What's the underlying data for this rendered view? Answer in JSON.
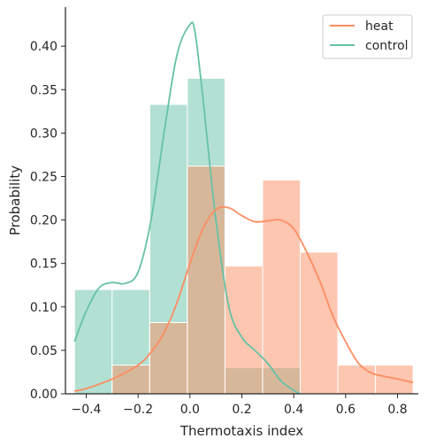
{
  "chart_data": {
    "type": "histogram",
    "xlabel": "Thermotaxis index",
    "ylabel": "Probability",
    "xlim": [
      -0.48,
      0.88
    ],
    "ylim": [
      0,
      0.445
    ],
    "xticks": [
      -0.4,
      -0.2,
      0.0,
      0.2,
      0.4,
      0.6,
      0.8
    ],
    "xtick_labels": [
      "−0.4",
      "−0.2",
      "0.0",
      "0.2",
      "0.4",
      "0.6",
      "0.8"
    ],
    "yticks": [
      0.0,
      0.05,
      0.1,
      0.15,
      0.2,
      0.25,
      0.3,
      0.35,
      0.4
    ],
    "ytick_labels": [
      "0.00",
      "0.05",
      "0.10",
      "0.15",
      "0.20",
      "0.25",
      "0.30",
      "0.35",
      "0.40"
    ],
    "legend": {
      "position": "top-right"
    },
    "series": [
      {
        "name": "control",
        "color": "#66c2a5",
        "bins": [
          {
            "x0": -0.445,
            "x1": -0.3,
            "value": 0.12
          },
          {
            "x0": -0.3,
            "x1": -0.155,
            "value": 0.12
          },
          {
            "x0": -0.155,
            "x1": -0.01,
            "value": 0.333
          },
          {
            "x0": -0.01,
            "x1": 0.135,
            "value": 0.363
          },
          {
            "x0": 0.135,
            "x1": 0.28,
            "value": 0.03
          },
          {
            "x0": 0.28,
            "x1": 0.425,
            "value": 0.03
          }
        ],
        "kde": [
          [
            -0.445,
            0.06
          ],
          [
            -0.4,
            0.095
          ],
          [
            -0.35,
            0.122
          ],
          [
            -0.3,
            0.128
          ],
          [
            -0.25,
            0.127
          ],
          [
            -0.2,
            0.14
          ],
          [
            -0.15,
            0.2
          ],
          [
            -0.1,
            0.3
          ],
          [
            -0.05,
            0.39
          ],
          [
            0.0,
            0.425
          ],
          [
            0.02,
            0.415
          ],
          [
            0.05,
            0.34
          ],
          [
            0.1,
            0.2
          ],
          [
            0.15,
            0.1
          ],
          [
            0.2,
            0.065
          ],
          [
            0.25,
            0.05
          ],
          [
            0.3,
            0.035
          ],
          [
            0.35,
            0.015
          ],
          [
            0.4,
            0.004
          ],
          [
            0.425,
            0.0
          ]
        ]
      },
      {
        "name": "heat",
        "color": "#fc8d62",
        "bins": [
          {
            "x0": -0.3,
            "x1": -0.155,
            "value": 0.033
          },
          {
            "x0": -0.155,
            "x1": -0.01,
            "value": 0.082
          },
          {
            "x0": -0.01,
            "x1": 0.135,
            "value": 0.262
          },
          {
            "x0": 0.135,
            "x1": 0.28,
            "value": 0.147
          },
          {
            "x0": 0.28,
            "x1": 0.425,
            "value": 0.246
          },
          {
            "x0": 0.425,
            "x1": 0.57,
            "value": 0.163
          },
          {
            "x0": 0.57,
            "x1": 0.715,
            "value": 0.033
          },
          {
            "x0": 0.715,
            "x1": 0.86,
            "value": 0.033
          }
        ],
        "kde": [
          [
            -0.445,
            0.003
          ],
          [
            -0.4,
            0.006
          ],
          [
            -0.3,
            0.017
          ],
          [
            -0.2,
            0.033
          ],
          [
            -0.15,
            0.048
          ],
          [
            -0.1,
            0.07
          ],
          [
            -0.05,
            0.105
          ],
          [
            0.0,
            0.15
          ],
          [
            0.05,
            0.19
          ],
          [
            0.1,
            0.212
          ],
          [
            0.15,
            0.214
          ],
          [
            0.2,
            0.205
          ],
          [
            0.25,
            0.198
          ],
          [
            0.3,
            0.199
          ],
          [
            0.35,
            0.2
          ],
          [
            0.4,
            0.19
          ],
          [
            0.45,
            0.163
          ],
          [
            0.5,
            0.13
          ],
          [
            0.55,
            0.09
          ],
          [
            0.6,
            0.06
          ],
          [
            0.65,
            0.035
          ],
          [
            0.7,
            0.024
          ],
          [
            0.75,
            0.02
          ],
          [
            0.8,
            0.017
          ],
          [
            0.86,
            0.013
          ]
        ]
      }
    ]
  }
}
